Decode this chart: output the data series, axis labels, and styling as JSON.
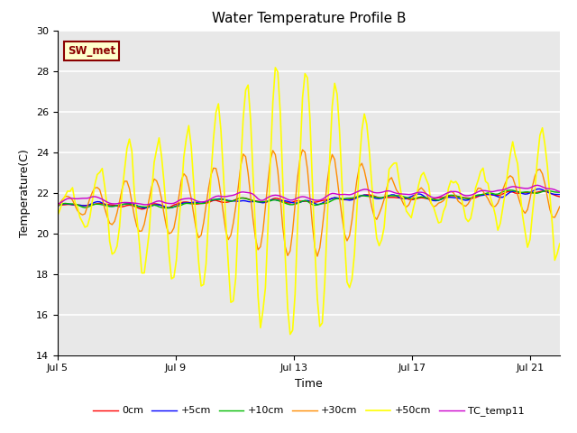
{
  "title": "Water Temperature Profile B",
  "xlabel": "Time",
  "ylabel": "Temperature(C)",
  "ylim": [
    14,
    30
  ],
  "xlim_days": [
    0,
    17
  ],
  "x_tick_labels": [
    "Jul 5",
    "Jul 9",
    "Jul 13",
    "Jul 17",
    "Jul 21"
  ],
  "x_tick_positions": [
    0,
    4,
    8,
    12,
    16
  ],
  "y_ticks": [
    14,
    16,
    18,
    20,
    22,
    24,
    26,
    28,
    30
  ],
  "annotation_text": "SW_met",
  "annotation_color": "#8B0000",
  "annotation_bg": "#FFFFCC",
  "annotation_border": "#8B0000",
  "plot_bg": "#E8E8E8",
  "series": [
    {
      "label": "0cm",
      "color": "#FF0000",
      "lw": 1.0
    },
    {
      "label": "+5cm",
      "color": "#0000FF",
      "lw": 1.0
    },
    {
      "label": "+10cm",
      "color": "#00BB00",
      "lw": 1.0
    },
    {
      "label": "+30cm",
      "color": "#FF8C00",
      "lw": 1.0
    },
    {
      "label": "+50cm",
      "color": "#FFFF00",
      "lw": 1.2
    },
    {
      "label": "TC_temp11",
      "color": "#CC00CC",
      "lw": 1.0
    }
  ],
  "legend_ncol": 6,
  "title_fontsize": 11,
  "axis_label_fontsize": 9,
  "tick_fontsize": 8,
  "legend_fontsize": 8
}
